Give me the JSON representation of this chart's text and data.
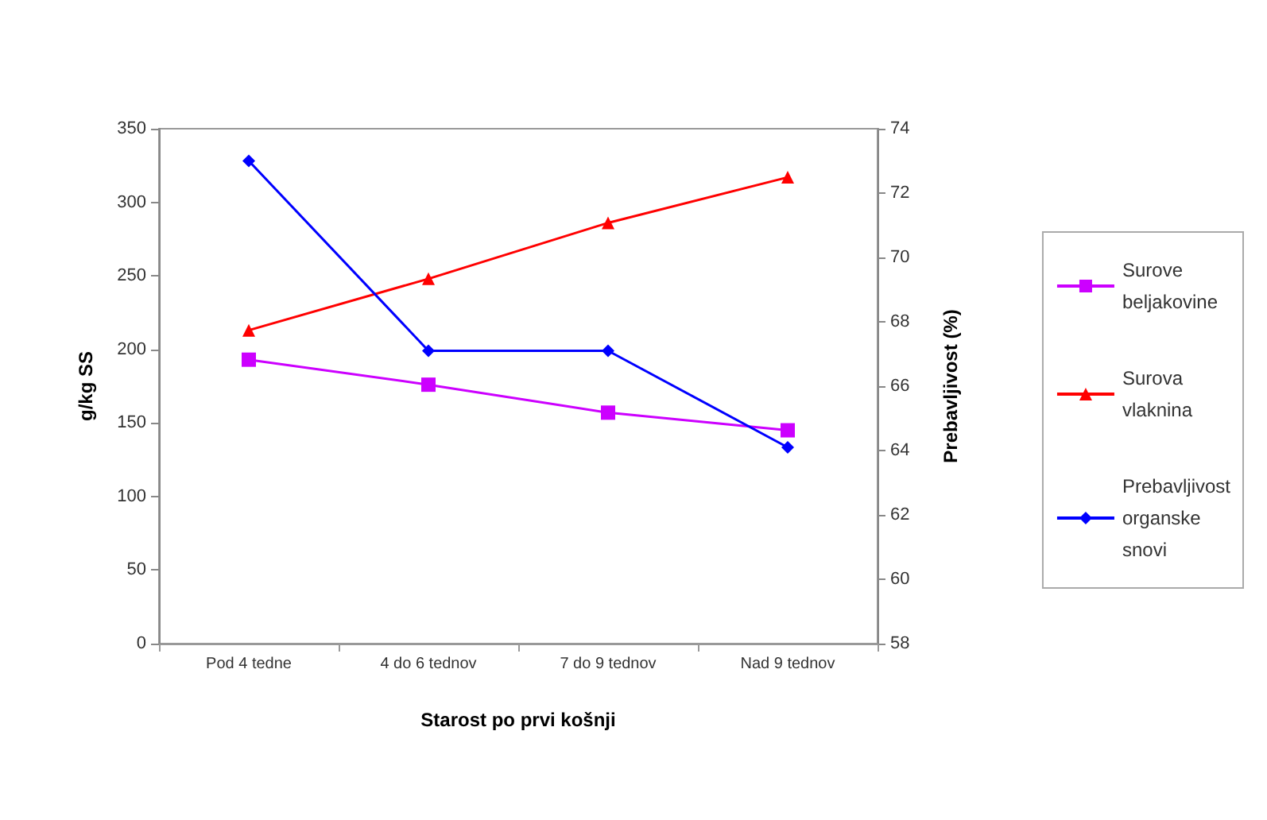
{
  "chart_data": {
    "type": "line",
    "categories": [
      "Pod 4 tedne",
      "4 do 6 tednov",
      "7 do 9 tednov",
      "Nad 9 tednov"
    ],
    "xlabel": "Starost po prvi košnji",
    "ylabel": "g/kg SS",
    "y2label": "Prebavljivost (%)",
    "series": [
      {
        "name": "Surove beljakovine",
        "color": "#cc00ff",
        "marker": "square",
        "values": [
          193,
          176,
          157,
          145
        ]
      },
      {
        "name": "Surova vlaknina",
        "color": "#ff0000",
        "marker": "triangle",
        "values": [
          213,
          248,
          286,
          317
        ]
      },
      {
        "name": "Prebavljivost organske snovi",
        "color": "#0000ff",
        "marker": "diamond",
        "axis": "y2",
        "values": [
          73,
          67.1,
          67.1,
          64.1
        ]
      }
    ],
    "ylim": [
      0,
      350
    ],
    "yticks": [
      0,
      50,
      100,
      150,
      200,
      250,
      300,
      350
    ],
    "y2lim": [
      58,
      74
    ],
    "y2ticks": [
      58,
      60,
      62,
      64,
      66,
      68,
      70,
      72,
      74
    ],
    "grid": false,
    "legend": "right"
  }
}
